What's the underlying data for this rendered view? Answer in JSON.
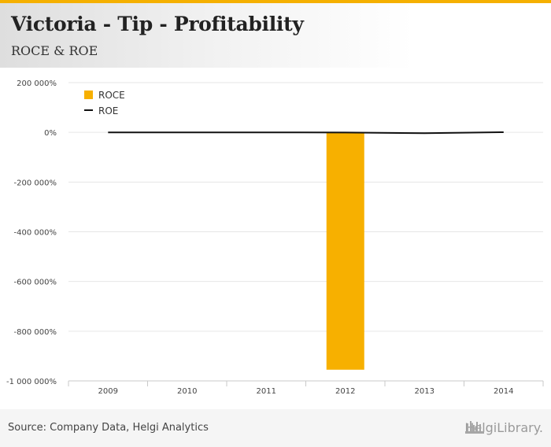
{
  "header": {
    "title": "Victoria - Tip - Profitability",
    "subtitle": "ROCE & ROE"
  },
  "footer": {
    "source": "Source: Company Data, Helgi Analytics",
    "logo_text": "HelgiLibrary."
  },
  "colors": {
    "accent": "#f5b000",
    "roce": "#f7b000",
    "roe": "#111111",
    "grid": "#e6e6e6"
  },
  "chart_data": {
    "type": "bar",
    "title": "ROCE & ROE",
    "xlabel": "",
    "ylabel": "",
    "categories": [
      "2009",
      "2010",
      "2011",
      "2012",
      "2013",
      "2014"
    ],
    "ylim": [
      -1000000,
      200000
    ],
    "yticks": [
      200000,
      0,
      -200000,
      -400000,
      -600000,
      -800000,
      -1000000
    ],
    "ytick_labels": [
      "200 000%",
      "0%",
      "-200 000%",
      "-400 000%",
      "-600 000%",
      "-800 000%",
      "-1 000 000%"
    ],
    "legend_position": "top-left",
    "series": [
      {
        "name": "ROCE",
        "type": "bar",
        "values": [
          0,
          0,
          0,
          -955000,
          0,
          0
        ]
      },
      {
        "name": "ROE",
        "type": "line",
        "values": [
          0,
          0,
          0,
          -800,
          -3500,
          500
        ]
      }
    ]
  }
}
